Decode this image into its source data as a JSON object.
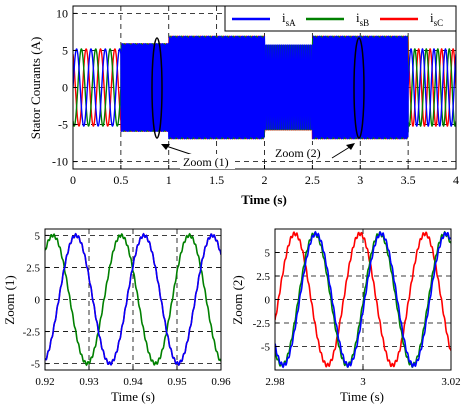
{
  "chart_data": [
    {
      "type": "line",
      "xlabel": "Time (s)",
      "ylabel": "Stator Courants (A)",
      "xlim": [
        0,
        4
      ],
      "ylim": [
        -11,
        11
      ],
      "x_ticks": [
        "0",
        "0.5",
        "1",
        "1.5",
        "2",
        "2.5",
        "3",
        "3.5",
        "4"
      ],
      "y_ticks": [
        "10",
        "5",
        "0",
        "-5",
        "-10"
      ],
      "grid": "dashed",
      "legend_position": "top-right",
      "series": [
        {
          "name": "i_sA",
          "sub": "sA",
          "color": "#0000ff"
        },
        {
          "name": "i_sB",
          "sub": "sB",
          "color": "#008000"
        },
        {
          "name": "i_sC",
          "sub": "sC",
          "color": "#ff0000"
        }
      ],
      "amplitude_segments": [
        {
          "t0": 0,
          "t1": 0.5,
          "amp": 5.2,
          "period": 0.15
        },
        {
          "t0": 0.5,
          "t1": 1.0,
          "amp": 6.0,
          "period": 0.015
        },
        {
          "t0": 1.0,
          "t1": 2.0,
          "amp": 7.0,
          "period": 0.015
        },
        {
          "t0": 2.0,
          "t1": 2.5,
          "amp": 5.8,
          "period": 0.02
        },
        {
          "t0": 2.5,
          "t1": 3.5,
          "amp": 7.0,
          "period": 0.015
        },
        {
          "t0": 3.5,
          "t1": 4.0,
          "amp": 5.2,
          "period": 0.12
        }
      ],
      "annotations": [
        {
          "text": "Zoom (1)",
          "x": 0.9
        },
        {
          "text": "Zoom (2)",
          "x": 3.0
        }
      ]
    },
    {
      "type": "line",
      "xlabel": "Time (s)",
      "ylabel": "Zoom (1)",
      "xlim": [
        0.92,
        0.96
      ],
      "ylim": [
        -5.5,
        5.5
      ],
      "x_ticks": [
        "0.92",
        "0.93",
        "0.94",
        "0.95",
        "0.96"
      ],
      "y_ticks": [
        "5",
        "2.5",
        "0",
        "-2.5",
        "-5"
      ],
      "grid": "dashed",
      "amplitude": 5.0,
      "period": 0.0155,
      "peaks": {
        "blue": 0.9115,
        "green": 0.9218,
        "red": 0.927
      }
    },
    {
      "type": "line",
      "xlabel": "Time (s)",
      "ylabel": "Zoom (2)",
      "xlim": [
        2.98,
        3.02
      ],
      "ylim": [
        -7.5,
        7.5
      ],
      "x_ticks": [
        "2.98",
        "3",
        "3.02"
      ],
      "y_ticks": [
        "5",
        "2.5",
        "0",
        "-2.5",
        "-5"
      ],
      "grid": "dashed",
      "amplitude": 7.0,
      "period": 0.0148,
      "peaks": {
        "blue": 2.9745,
        "green": 2.989,
        "red": 2.9845
      }
    }
  ]
}
